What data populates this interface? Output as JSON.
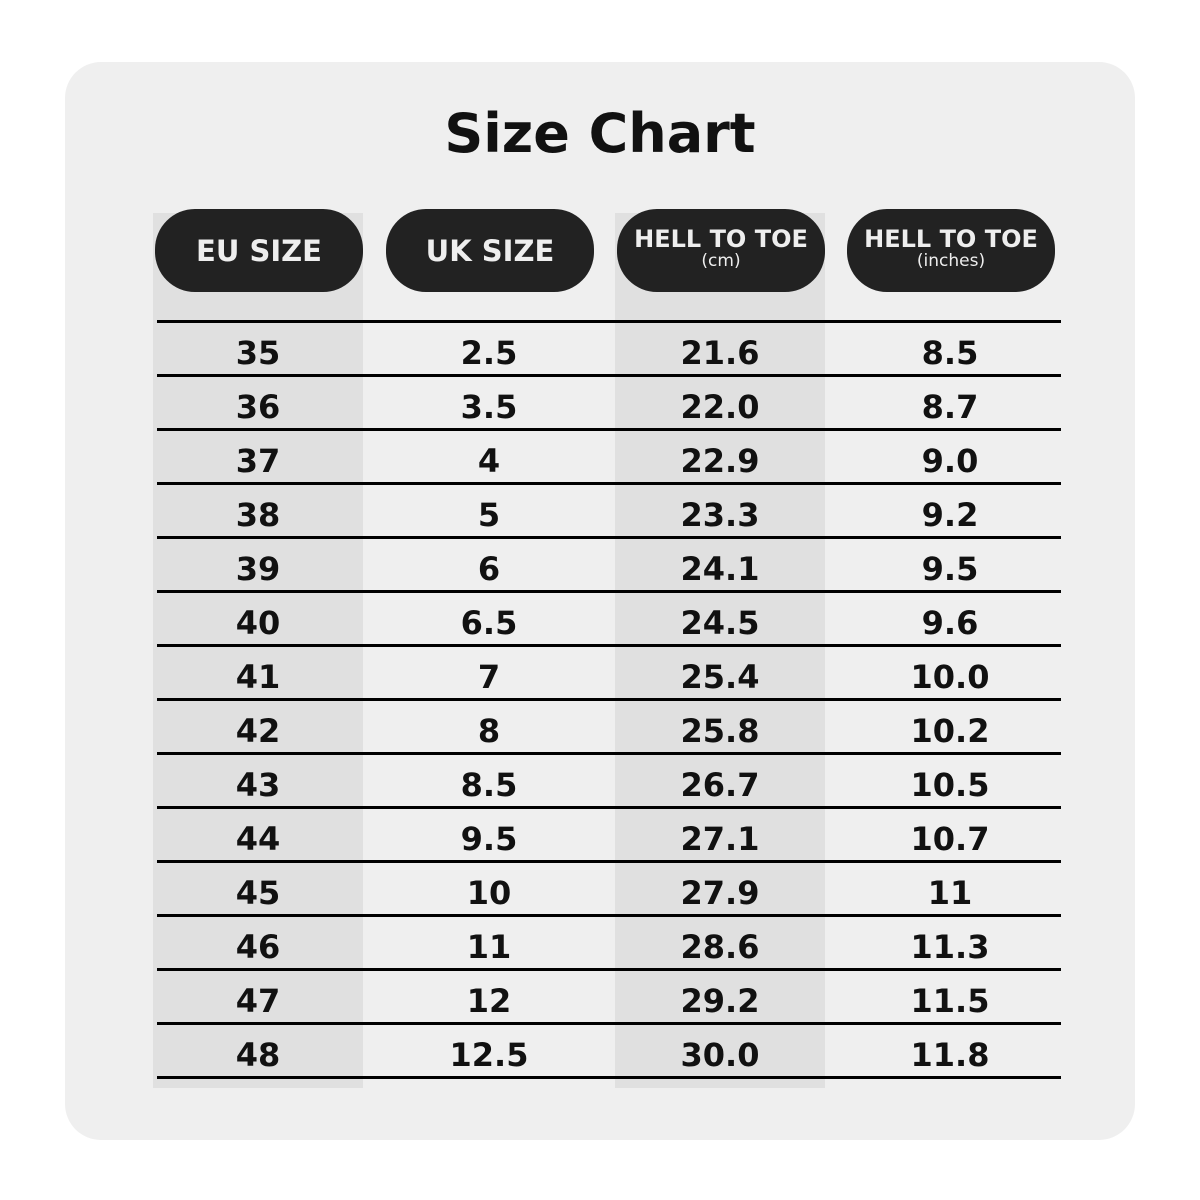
{
  "title": "Size Chart",
  "colors": {
    "header_bg": "#222222",
    "card_bg": "#efefef",
    "shaded_column": "#e0e0e0"
  },
  "headers": [
    {
      "label": "EU SIZE",
      "sub": ""
    },
    {
      "label": "UK SIZE",
      "sub": ""
    },
    {
      "label": "HELL TO TOE",
      "sub": "(cm)"
    },
    {
      "label": "HELL TO TOE",
      "sub": "(inches)"
    }
  ],
  "rows": [
    [
      "35",
      "2.5",
      "21.6",
      "8.5"
    ],
    [
      "36",
      "3.5",
      "22.0",
      "8.7"
    ],
    [
      "37",
      "4",
      "22.9",
      "9.0"
    ],
    [
      "38",
      "5",
      "23.3",
      "9.2"
    ],
    [
      "39",
      "6",
      "24.1",
      "9.5"
    ],
    [
      "40",
      "6.5",
      "24.5",
      "9.6"
    ],
    [
      "41",
      "7",
      "25.4",
      "10.0"
    ],
    [
      "42",
      "8",
      "25.8",
      "10.2"
    ],
    [
      "43",
      "8.5",
      "26.7",
      "10.5"
    ],
    [
      "44",
      "9.5",
      "27.1",
      "10.7"
    ],
    [
      "45",
      "10",
      "27.9",
      "11"
    ],
    [
      "46",
      "11",
      "28.6",
      "11.3"
    ],
    [
      "47",
      "12",
      "29.2",
      "11.5"
    ],
    [
      "48",
      "12.5",
      "30.0",
      "11.8"
    ]
  ]
}
